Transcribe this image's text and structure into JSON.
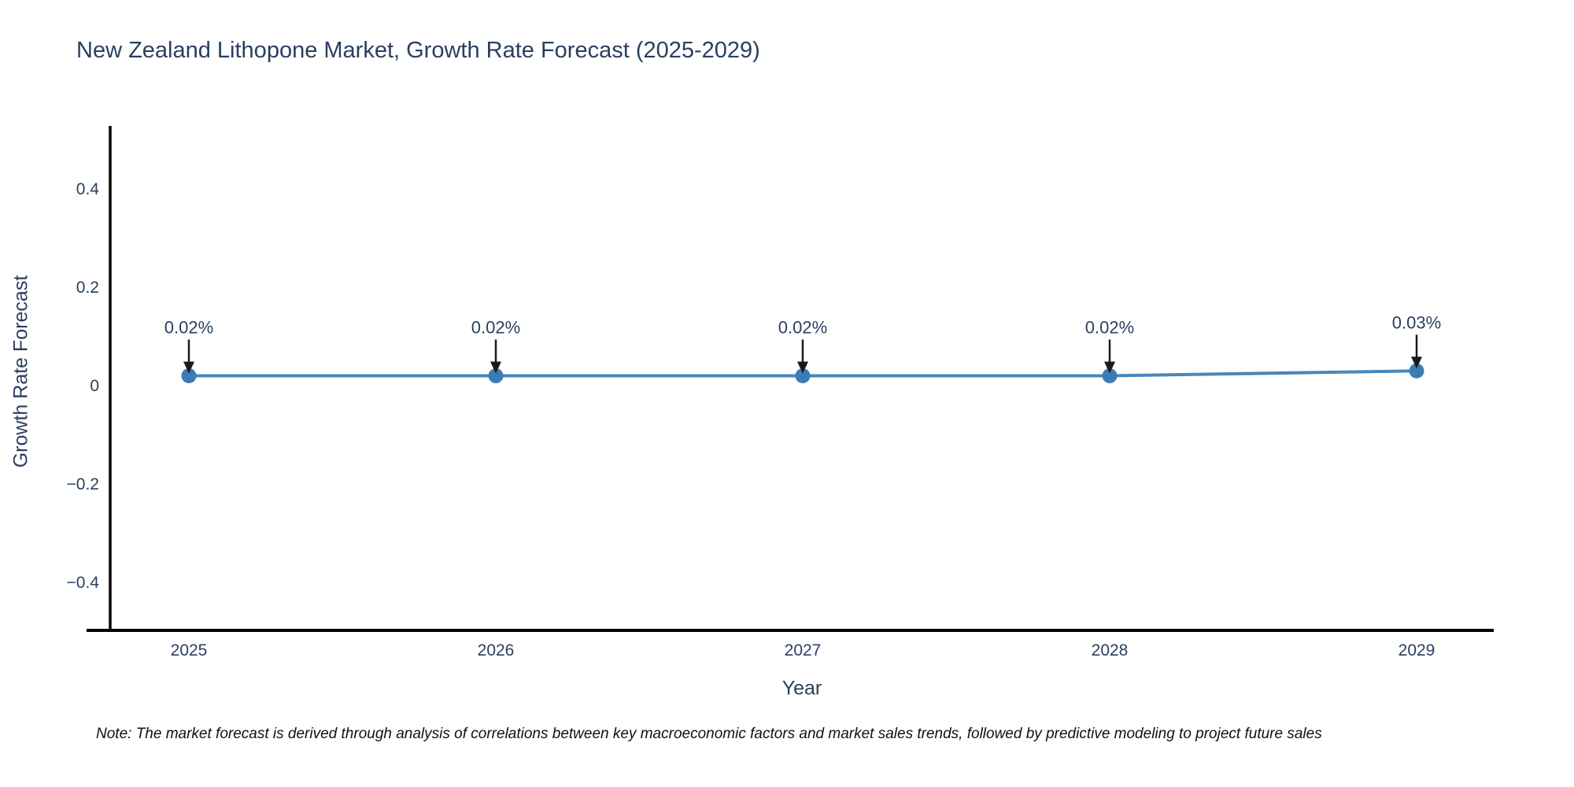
{
  "chart_data": {
    "type": "line",
    "title": "New Zealand Lithopone Market, Growth Rate Forecast (2025-2029)",
    "xlabel": "Year",
    "ylabel": "Growth Rate Forecast",
    "x": [
      2025,
      2026,
      2027,
      2028,
      2029
    ],
    "values": [
      0.02,
      0.02,
      0.02,
      0.02,
      0.03
    ],
    "data_labels": [
      "0.02%",
      "0.02%",
      "0.02%",
      "0.02%",
      "0.03%"
    ],
    "xtick_labels": [
      "2025",
      "2026",
      "2027",
      "2028",
      "2029"
    ],
    "yticks": [
      -0.4,
      -0.2,
      0,
      0.2,
      0.4
    ],
    "ytick_labels": [
      "−0.4",
      "−0.2",
      "0",
      "0.2",
      "0.4"
    ],
    "ylim": [
      -0.5,
      0.53
    ],
    "xlim": [
      2024.74,
      2029.23
    ],
    "grid": false,
    "legend": "none",
    "colors": {
      "line": "#4a86b8",
      "marker": "#3c7cb5",
      "axis": "#000000",
      "annotation_arrow": "#1a1a1a",
      "text": "#2a3f5f"
    }
  },
  "footnote": {
    "text": "Note: The market forecast is derived through analysis of correlations between key macroeconomic factors and market sales trends, followed by predictive modeling to project future sales"
  }
}
